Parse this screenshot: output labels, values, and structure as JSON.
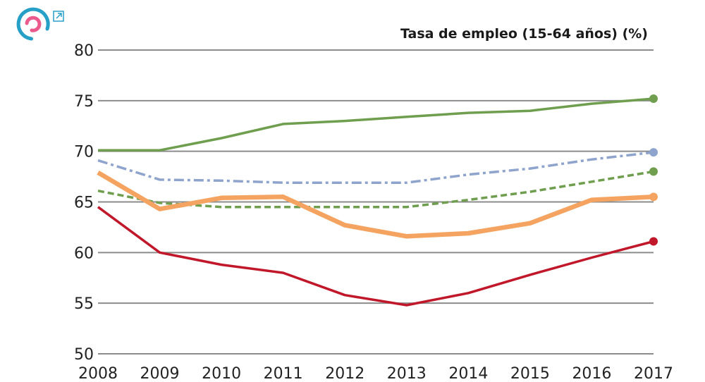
{
  "icons": {
    "logo": "circular-arrows-logo-icon",
    "external": "external-link-icon"
  },
  "colors": {
    "grid": "#8c8c8c",
    "logo_outer": "#27a0c8",
    "logo_inner": "#ea5a8c"
  },
  "chart_data": {
    "type": "line",
    "title": "Tasa de empleo (15-64 años) (%)",
    "xlabel": "",
    "ylabel": "",
    "x": [
      "2008",
      "2009",
      "2010",
      "2011",
      "2012",
      "2013",
      "2014",
      "2015",
      "2016",
      "2017"
    ],
    "y_ticks": [
      "50",
      "55",
      "60",
      "65",
      "70",
      "75",
      "80"
    ],
    "ylim": [
      50,
      80
    ],
    "grid": true,
    "legend": "none",
    "series": [
      {
        "color": "#6f9e4f",
        "dash": "solid",
        "width": 3.5,
        "values": [
          70.1,
          70.1,
          71.3,
          72.7,
          73.0,
          73.4,
          73.8,
          74.0,
          74.7,
          75.2
        ]
      },
      {
        "color": "#8fa4cc",
        "dash": "dashdot",
        "width": 3.5,
        "values": [
          69.1,
          67.2,
          67.1,
          66.9,
          66.9,
          66.9,
          67.7,
          68.3,
          69.2,
          69.9
        ]
      },
      {
        "color": "#6f9e4f",
        "dash": "dashed",
        "width": 3.5,
        "values": [
          66.1,
          64.9,
          64.5,
          64.5,
          64.5,
          64.5,
          65.2,
          66.0,
          67.0,
          68.0
        ]
      },
      {
        "color": "#f4a460",
        "dash": "solid",
        "width": 6.5,
        "values": [
          67.9,
          64.3,
          65.4,
          65.5,
          62.7,
          61.6,
          61.9,
          62.9,
          65.2,
          65.5
        ]
      },
      {
        "color": "#c0182a",
        "dash": "solid",
        "width": 3.5,
        "values": [
          64.5,
          60.0,
          58.8,
          58.0,
          55.8,
          54.8,
          56.0,
          57.8,
          59.5,
          61.1
        ]
      }
    ]
  }
}
